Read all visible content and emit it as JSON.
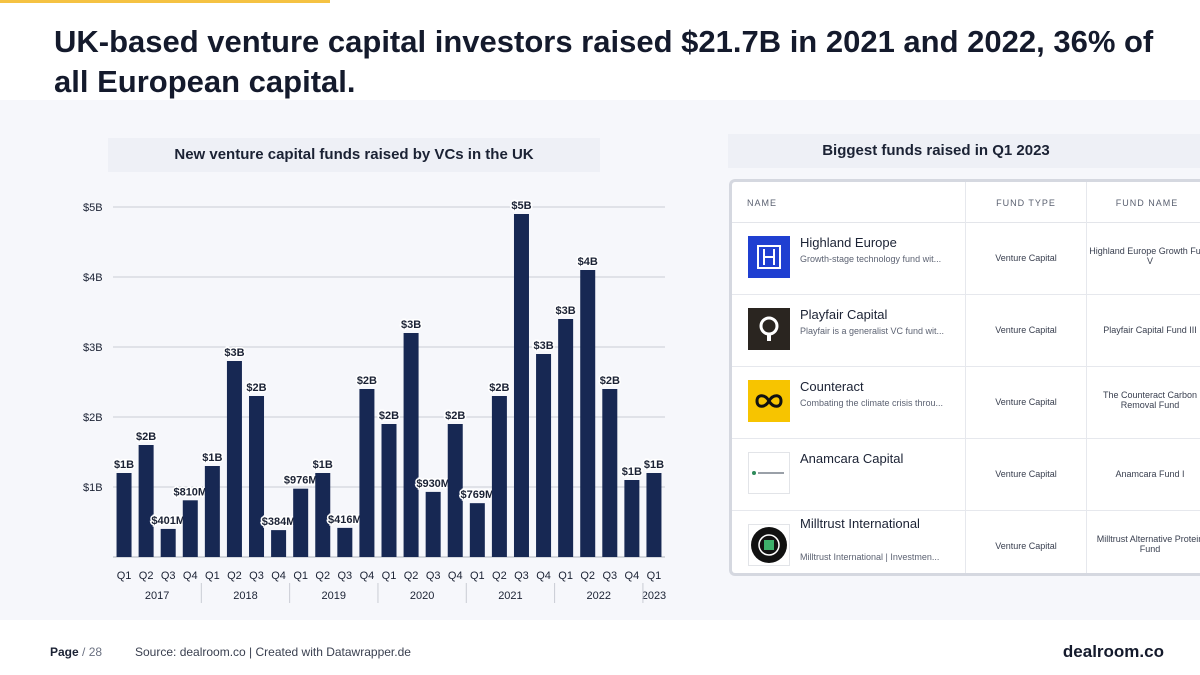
{
  "headline": "UK-based venture capital investors raised $21.7B in 2021 and 2022, 36% of all European capital.",
  "chart_title": "New venture capital funds raised by VCs in the UK",
  "chart_data": {
    "type": "bar",
    "title": "New venture capital funds raised by VCs in the UK",
    "xlabel": "",
    "ylabel": "",
    "ylim": [
      0,
      5.2
    ],
    "yticks": [
      {
        "value": 1,
        "label": "$1B"
      },
      {
        "value": 2,
        "label": "$2B"
      },
      {
        "value": 3,
        "label": "$3B"
      },
      {
        "value": 4,
        "label": "$4B"
      },
      {
        "value": 5,
        "label": "$5B"
      }
    ],
    "years": [
      {
        "label": "2017",
        "count": 4
      },
      {
        "label": "2018",
        "count": 4
      },
      {
        "label": "2019",
        "count": 4
      },
      {
        "label": "2020",
        "count": 4
      },
      {
        "label": "2021",
        "count": 4
      },
      {
        "label": "2022",
        "count": 4
      },
      {
        "label": "2023",
        "count": 1
      }
    ],
    "categories": [
      "Q1",
      "Q2",
      "Q3",
      "Q4",
      "Q1",
      "Q2",
      "Q3",
      "Q4",
      "Q1",
      "Q2",
      "Q3",
      "Q4",
      "Q1",
      "Q2",
      "Q3",
      "Q4",
      "Q1",
      "Q2",
      "Q3",
      "Q4",
      "Q1",
      "Q2",
      "Q3",
      "Q4",
      "Q1"
    ],
    "values": [
      1.2,
      1.6,
      0.401,
      0.81,
      1.3,
      2.8,
      2.3,
      0.384,
      0.976,
      1.2,
      0.416,
      2.4,
      1.9,
      3.2,
      0.93,
      1.9,
      0.769,
      2.3,
      4.9,
      2.9,
      3.4,
      4.1,
      2.4,
      1.1,
      1.2
    ],
    "labels": [
      "$1B",
      "$2B",
      "$401M",
      "$810M",
      "$1B",
      "$3B",
      "$2B",
      "$384M",
      "$976M",
      "$1B",
      "$416M",
      "$2B",
      "$2B",
      "$3B",
      "$930M",
      "$2B",
      "$769M",
      "$2B",
      "$5B",
      "$3B",
      "$3B",
      "$4B",
      "$2B",
      "$1B",
      "$1B"
    ],
    "bar_color": "#172853",
    "grid": true
  },
  "table": {
    "title": "Biggest funds raised in Q1 2023",
    "headers": {
      "name": "NAME",
      "fund_type": "FUND TYPE",
      "fund_name": "FUND NAME"
    },
    "rows": [
      {
        "name": "Highland Europe",
        "desc": "Growth-stage technology fund wit...",
        "type": "Venture Capital",
        "fund": "Highland Europe Growth Fund V",
        "logo": "highland-europe-logo",
        "logo_color": "#1f3fd1"
      },
      {
        "name": "Playfair Capital",
        "desc": "Playfair is a generalist VC fund wit...",
        "type": "Venture Capital",
        "fund": "Playfair Capital Fund III",
        "logo": "playfair-capital-logo",
        "logo_color": "#2a2520"
      },
      {
        "name": "Counteract",
        "desc": "Combating the climate crisis throu...",
        "type": "Venture Capital",
        "fund": "The Counteract Carbon Removal Fund",
        "logo": "counteract-logo",
        "logo_color": "#f7c400"
      },
      {
        "name": "Anamcara Capital",
        "desc": "",
        "type": "Venture Capital",
        "fund": "Anamcara Fund I",
        "logo": "anamcara-capital-logo",
        "logo_color": "#2e8a5a"
      },
      {
        "name": "Milltrust International",
        "desc": "Milltrust International | Investmen...",
        "type": "Venture Capital",
        "fund": "Milltrust Alternative Protein Fund",
        "logo": "milltrust-logo",
        "logo_color": "#111111"
      }
    ]
  },
  "footer": {
    "page_label": "Page",
    "page_number": "/ 28",
    "source": "Source: dealroom.co | Created with Datawrapper.de",
    "brand": "dealroom.co"
  },
  "colors": {
    "accent": "#f5c242",
    "bar": "#172853",
    "panel": "#f6f7fb"
  }
}
